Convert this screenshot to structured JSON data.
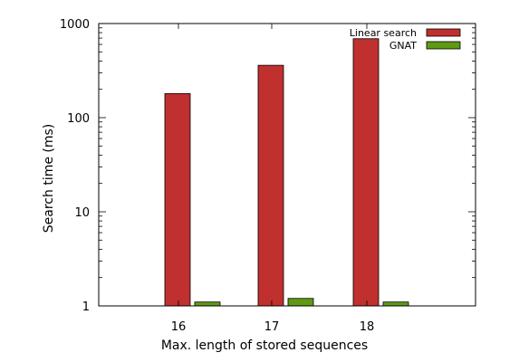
{
  "chart_data": {
    "type": "bar",
    "title": "",
    "xlabel": "Max. length of stored sequences",
    "ylabel": "Search time (ms)",
    "categories": [
      "16",
      "17",
      "18"
    ],
    "series": [
      {
        "name": "Linear search",
        "color": "#c0302e",
        "values": [
          180,
          360,
          690
        ]
      },
      {
        "name": "GNAT",
        "color": "#5e9a14",
        "values": [
          1.1,
          1.2,
          1.1
        ]
      }
    ],
    "y_scale": "log",
    "ylim": [
      1,
      1000
    ],
    "yticks": [
      {
        "value": 1,
        "label": "1"
      },
      {
        "value": 10,
        "label": "10"
      },
      {
        "value": 100,
        "label": "100"
      },
      {
        "value": 1000,
        "label": "1000"
      }
    ],
    "grid": false,
    "legend_position": "top-right"
  }
}
